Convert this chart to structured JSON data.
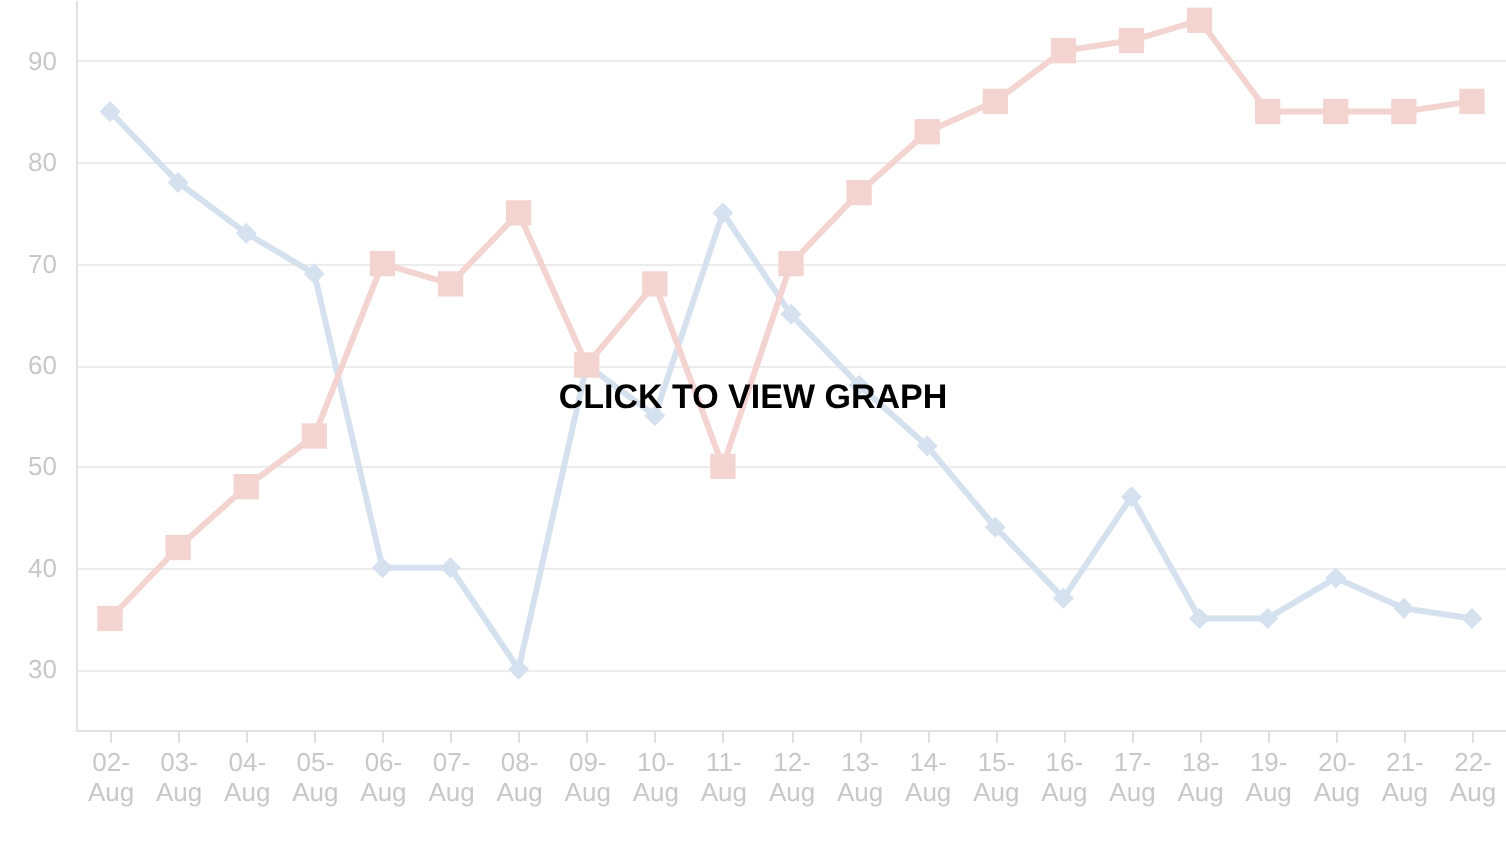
{
  "chart_data": {
    "type": "line",
    "categories": [
      "02-Aug",
      "03-Aug",
      "04-Aug",
      "05-Aug",
      "06-Aug",
      "07-Aug",
      "08-Aug",
      "09-Aug",
      "10-Aug",
      "11-Aug",
      "12-Aug",
      "13-Aug",
      "14-Aug",
      "15-Aug",
      "16-Aug",
      "17-Aug",
      "18-Aug",
      "19-Aug",
      "20-Aug",
      "21-Aug",
      "22-Aug"
    ],
    "series": [
      {
        "color": "#d6e1f0",
        "marker": "diamond",
        "values": [
          85,
          78,
          73,
          69,
          40,
          40,
          30,
          60,
          55,
          75,
          65,
          58,
          52,
          44,
          37,
          47,
          35,
          35,
          39,
          36,
          35
        ]
      },
      {
        "color": "#f3d4d0",
        "marker": "square",
        "values": [
          35,
          42,
          48,
          53,
          70,
          68,
          75,
          60,
          68,
          50,
          70,
          77,
          83,
          86,
          91,
          92,
          94,
          85,
          85,
          85,
          86
        ]
      }
    ],
    "ylim": [
      24,
      96
    ],
    "yticks": [
      30,
      40,
      50,
      60,
      70,
      80,
      90
    ],
    "grid": "y",
    "annotations": [
      "CLICK TO VIEW GRAPH"
    ]
  }
}
